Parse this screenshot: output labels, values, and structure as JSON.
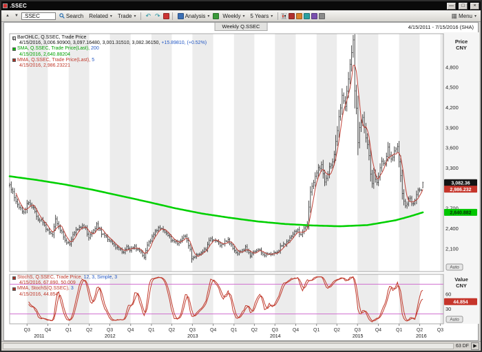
{
  "window": {
    "title": ".SSEC"
  },
  "icons": {
    "caret": "▾",
    "up_arrow": "▲",
    "down_arrow": "▼",
    "undo": "↶",
    "redo": "↷",
    "grid": "▦",
    "play": "▶",
    "minimize": "—",
    "maximize": "□",
    "close": "×"
  },
  "toolbar": {
    "symbol_input": ".SSEC",
    "search_label": "Search",
    "related_label": "Related",
    "trade_label": "Trade",
    "analysis_label": "Analysis",
    "interval_label": "Weekly",
    "range_label": "5 Years",
    "menu_label": "Menu"
  },
  "chart_header": {
    "tab_title": "Weekly Q.SSEC",
    "date_range": "4/15/2011 - 7/15/2016 (SHA)"
  },
  "legend_main": {
    "line1": "BarOHLC, Q.SSEC, Trade Price",
    "line2_pre": "4/15/2016, 3,006.90900, 3,097.16480, 3,001.31510, 3,082.36150,",
    "line2_change": "+15.89810, (+0.52%)",
    "sma_name": "SMA, Q.SSEC, Trade Price(Last),",
    "sma_param": "200",
    "sma_value": "4/15/2016, 2,640.88204",
    "mma_name": "MMA, Q.SSEC, Trade Price(Last),",
    "mma_param": "5",
    "mma_value": "4/15/2016, 2,986.23221"
  },
  "legend_stoch": {
    "stoch_name": "StochS, Q.SSEC, Trade Price,",
    "stoch_param": "12, 3, Simple, 3",
    "stoch_value": "4/15/2016, 67.890, 50.009",
    "mma_name": "MMA, StochS(Q.SSEC),",
    "mma_param": "3",
    "mma_value": "4/15/2016, 44.854"
  },
  "axes": {
    "price_axis_title": [
      "Price",
      "CNY"
    ],
    "value_axis_title": [
      "Value",
      "CNY"
    ],
    "auto_label": "Auto",
    "price_badges": [
      {
        "label": "3,082.36",
        "value": 3082.36,
        "bg": "#141414",
        "fg": "#ffffff"
      },
      {
        "label": "2,986.232",
        "value": 2986.23,
        "bg": "#c6352b",
        "fg": "#ffffff"
      },
      {
        "label": "2,640.882",
        "value": 2640.88,
        "bg": "#00c600",
        "fg": "#08320a"
      }
    ],
    "stoch_badge": {
      "label": "44.854",
      "value": 44.854,
      "bg": "#c6352b",
      "fg": "#ffffff"
    }
  },
  "status": {
    "bar_count": "63 DF"
  },
  "colors": {
    "bar": "#1f1f1f",
    "sma": "#00d000",
    "mma": "#bf4036",
    "stoch": "#c0392b",
    "band": "#cf6fcf",
    "stripe": "#ececec",
    "axis_bg": "#f5f5f5",
    "blue": "#2257c4"
  },
  "chart_data": {
    "type": "candlestick",
    "title": "Weekly Q.SSEC",
    "symbol": "Q.SSEC",
    "interval": "weekly",
    "x_range": [
      "2011-04-15",
      "2016-07-15"
    ],
    "data_end": "2016-04-15",
    "price_axis": {
      "ticks": [
        4800,
        4500,
        4200,
        3900,
        3600,
        3300,
        3000,
        2700,
        2400,
        2100
      ],
      "ylim": [
        1760,
        5300
      ]
    },
    "last_bar": {
      "date": "4/15/2016",
      "open": 3006.909,
      "high": 3097.1648,
      "low": 3001.3151,
      "close": 3082.3615,
      "change": 15.8981,
      "change_pct": 0.52
    },
    "close_anchors": [
      [
        "2011-04-15",
        3051
      ],
      [
        "2011-05-06",
        2863
      ],
      [
        "2011-05-27",
        2710
      ],
      [
        "2011-06-17",
        2643
      ],
      [
        "2011-07-08",
        2798
      ],
      [
        "2011-07-29",
        2701
      ],
      [
        "2011-08-19",
        2534
      ],
      [
        "2011-09-09",
        2498
      ],
      [
        "2011-09-30",
        2359
      ],
      [
        "2011-10-21",
        2317
      ],
      [
        "2011-11-04",
        2528
      ],
      [
        "2011-11-25",
        2380
      ],
      [
        "2011-12-16",
        2225
      ],
      [
        "2012-01-06",
        2163
      ],
      [
        "2012-01-20",
        2319
      ],
      [
        "2012-02-24",
        2440
      ],
      [
        "2012-03-16",
        2405
      ],
      [
        "2012-03-30",
        2262
      ],
      [
        "2012-05-04",
        2452
      ],
      [
        "2012-05-25",
        2334
      ],
      [
        "2012-06-29",
        2225
      ],
      [
        "2012-07-27",
        2129
      ],
      [
        "2012-08-31",
        2047
      ],
      [
        "2012-09-14",
        2124
      ],
      [
        "2012-09-28",
        2086
      ],
      [
        "2012-10-19",
        2128
      ],
      [
        "2012-11-09",
        2069
      ],
      [
        "2012-11-30",
        1980
      ],
      [
        "2012-12-14",
        2151
      ],
      [
        "2013-01-04",
        2277
      ],
      [
        "2013-02-01",
        2419
      ],
      [
        "2013-03-01",
        2360
      ],
      [
        "2013-03-29",
        2237
      ],
      [
        "2013-04-26",
        2178
      ],
      [
        "2013-05-31",
        2301
      ],
      [
        "2013-06-21",
        2073
      ],
      [
        "2013-06-28",
        1960
      ],
      [
        "2013-07-26",
        2011
      ],
      [
        "2013-08-30",
        2098
      ],
      [
        "2013-09-13",
        2236
      ],
      [
        "2013-10-11",
        2228
      ],
      [
        "2013-11-01",
        2150
      ],
      [
        "2013-11-22",
        2196
      ],
      [
        "2013-12-06",
        2237
      ],
      [
        "2013-12-27",
        2101
      ],
      [
        "2014-01-17",
        2026
      ],
      [
        "2014-02-21",
        2113
      ],
      [
        "2014-03-14",
        2004
      ],
      [
        "2014-04-18",
        2097
      ],
      [
        "2014-05-09",
        2011
      ],
      [
        "2014-06-20",
        2026
      ],
      [
        "2014-07-11",
        2047
      ],
      [
        "2014-07-25",
        2127
      ],
      [
        "2014-08-29",
        2217
      ],
      [
        "2014-09-19",
        2330
      ],
      [
        "2014-10-10",
        2375
      ],
      [
        "2014-10-24",
        2302
      ],
      [
        "2014-11-21",
        2487
      ],
      [
        "2014-12-05",
        2938
      ],
      [
        "2014-12-19",
        3109
      ],
      [
        "2015-01-09",
        3285
      ],
      [
        "2015-01-23",
        3352
      ],
      [
        "2015-02-06",
        3075
      ],
      [
        "2015-02-27",
        3310
      ],
      [
        "2015-03-13",
        3373
      ],
      [
        "2015-03-27",
        3691
      ],
      [
        "2015-04-10",
        4034
      ],
      [
        "2015-04-24",
        4394
      ],
      [
        "2015-05-08",
        4206
      ],
      [
        "2015-05-22",
        4658
      ],
      [
        "2015-06-05",
        5023
      ],
      [
        "2015-06-12",
        5166
      ],
      [
        "2015-06-19",
        4478
      ],
      [
        "2015-06-26",
        4193
      ],
      [
        "2015-07-03",
        3687
      ],
      [
        "2015-07-10",
        3877
      ],
      [
        "2015-07-24",
        4071
      ],
      [
        "2015-08-07",
        3744
      ],
      [
        "2015-08-21",
        3508
      ],
      [
        "2015-08-28",
        3210
      ],
      [
        "2015-09-04",
        3080
      ],
      [
        "2015-09-11",
        3200
      ],
      [
        "2015-09-25",
        3092
      ],
      [
        "2015-10-16",
        3391
      ],
      [
        "2015-10-30",
        3383
      ],
      [
        "2015-11-13",
        3581
      ],
      [
        "2015-11-27",
        3436
      ],
      [
        "2015-12-25",
        3628
      ],
      [
        "2016-01-08",
        3186
      ],
      [
        "2016-01-15",
        2901
      ],
      [
        "2016-01-29",
        2738
      ],
      [
        "2016-02-19",
        2860
      ],
      [
        "2016-02-26",
        2767
      ],
      [
        "2016-03-11",
        2810
      ],
      [
        "2016-03-25",
        2980
      ],
      [
        "2016-04-08",
        2985
      ],
      [
        "2016-04-15",
        3082.36
      ]
    ],
    "sma200_anchors": [
      [
        "2011-04-15",
        3178
      ],
      [
        "2011-08-15",
        3122
      ],
      [
        "2011-12-15",
        3056
      ],
      [
        "2012-04-15",
        2978
      ],
      [
        "2012-08-15",
        2888
      ],
      [
        "2012-12-15",
        2798
      ],
      [
        "2013-04-15",
        2703
      ],
      [
        "2013-08-15",
        2622
      ],
      [
        "2013-12-15",
        2560
      ],
      [
        "2014-04-15",
        2506
      ],
      [
        "2014-08-15",
        2468
      ],
      [
        "2014-12-15",
        2446
      ],
      [
        "2015-04-15",
        2434
      ],
      [
        "2015-08-15",
        2452
      ],
      [
        "2015-12-15",
        2522
      ],
      [
        "2016-02-15",
        2578
      ],
      [
        "2016-04-15",
        2640.88
      ]
    ],
    "indicators": {
      "sma_period": 200,
      "mma_period": 5
    },
    "stoch": {
      "params": "12, 3, Simple, 3",
      "k_last": 67.89,
      "d_last": 50.009,
      "mma_last": 44.854,
      "overbought": 80,
      "oversold": 20,
      "ticks": [
        60,
        30
      ],
      "ylim": [
        0,
        100
      ]
    }
  }
}
